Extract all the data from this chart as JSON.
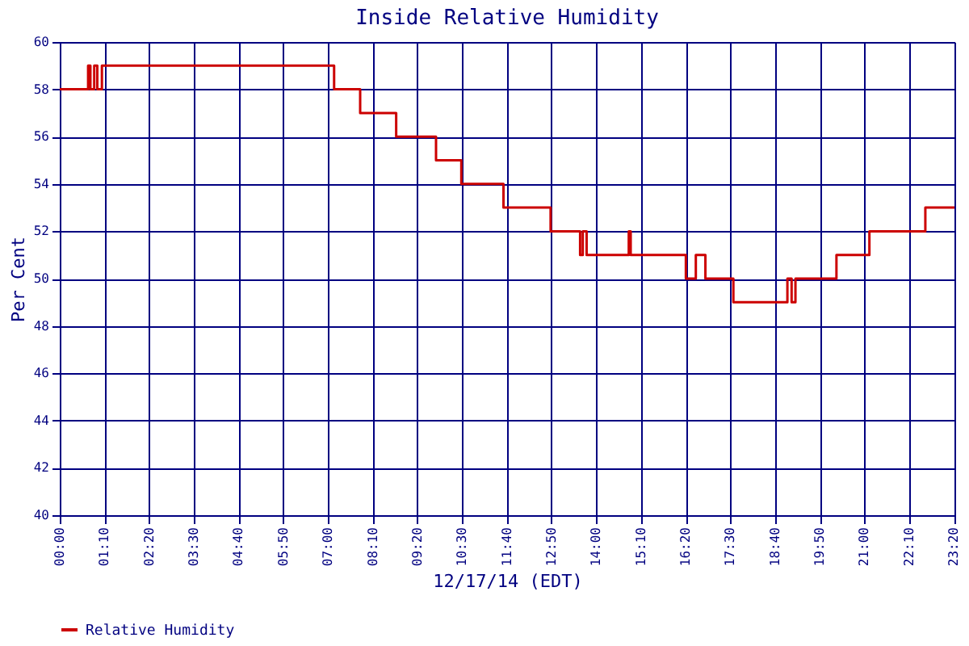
{
  "chart_data": {
    "type": "step",
    "title": "Inside Relative Humidity",
    "xlabel": "12/17/14 (EDT)",
    "ylabel": "Per Cent",
    "series": [
      {
        "name": "Relative Humidity",
        "color": "#cc0000",
        "x": [
          0,
          0.74,
          0.8,
          0.9,
          0.98,
          1.1,
          7.16,
          7.84,
          8.78,
          9.82,
          10.48,
          11.58,
          12.81,
          13.58,
          13.65,
          13.75,
          14.85,
          14.9,
          16.34,
          16.6,
          16.85,
          17.58,
          18.99,
          19.1,
          19.2,
          20.27,
          21.13,
          22.59,
          23.35
        ],
        "values": [
          58,
          59,
          58,
          59,
          58,
          59,
          58,
          57,
          56,
          55,
          54,
          53,
          52,
          51,
          52,
          51,
          52,
          51,
          50,
          51,
          50,
          49,
          50,
          49,
          50,
          51,
          52,
          53,
          53
        ]
      }
    ],
    "xlim": [
      0,
      23.35
    ],
    "xticks": [
      {
        "value": 0,
        "label": "00:00"
      },
      {
        "value": 1.1667,
        "label": "01:10"
      },
      {
        "value": 2.3333,
        "label": "02:20"
      },
      {
        "value": 3.5,
        "label": "03:30"
      },
      {
        "value": 4.6667,
        "label": "04:40"
      },
      {
        "value": 5.8333,
        "label": "05:50"
      },
      {
        "value": 7,
        "label": "07:00"
      },
      {
        "value": 8.1667,
        "label": "08:10"
      },
      {
        "value": 9.3333,
        "label": "09:20"
      },
      {
        "value": 10.5,
        "label": "10:30"
      },
      {
        "value": 11.6667,
        "label": "11:40"
      },
      {
        "value": 12.8333,
        "label": "12:50"
      },
      {
        "value": 14,
        "label": "14:00"
      },
      {
        "value": 15.1667,
        "label": "15:10"
      },
      {
        "value": 16.3333,
        "label": "16:20"
      },
      {
        "value": 17.5,
        "label": "17:30"
      },
      {
        "value": 18.6667,
        "label": "18:40"
      },
      {
        "value": 19.8333,
        "label": "19:50"
      },
      {
        "value": 21,
        "label": "21:00"
      },
      {
        "value": 22.1667,
        "label": "22:10"
      },
      {
        "value": 23.3333,
        "label": "23:20"
      }
    ],
    "ylim": [
      40,
      60
    ],
    "yticks": [
      40,
      42,
      44,
      46,
      48,
      50,
      52,
      54,
      56,
      58,
      60
    ],
    "grid": true,
    "legend": "bottom",
    "marker": "none",
    "line_style": "solid"
  }
}
